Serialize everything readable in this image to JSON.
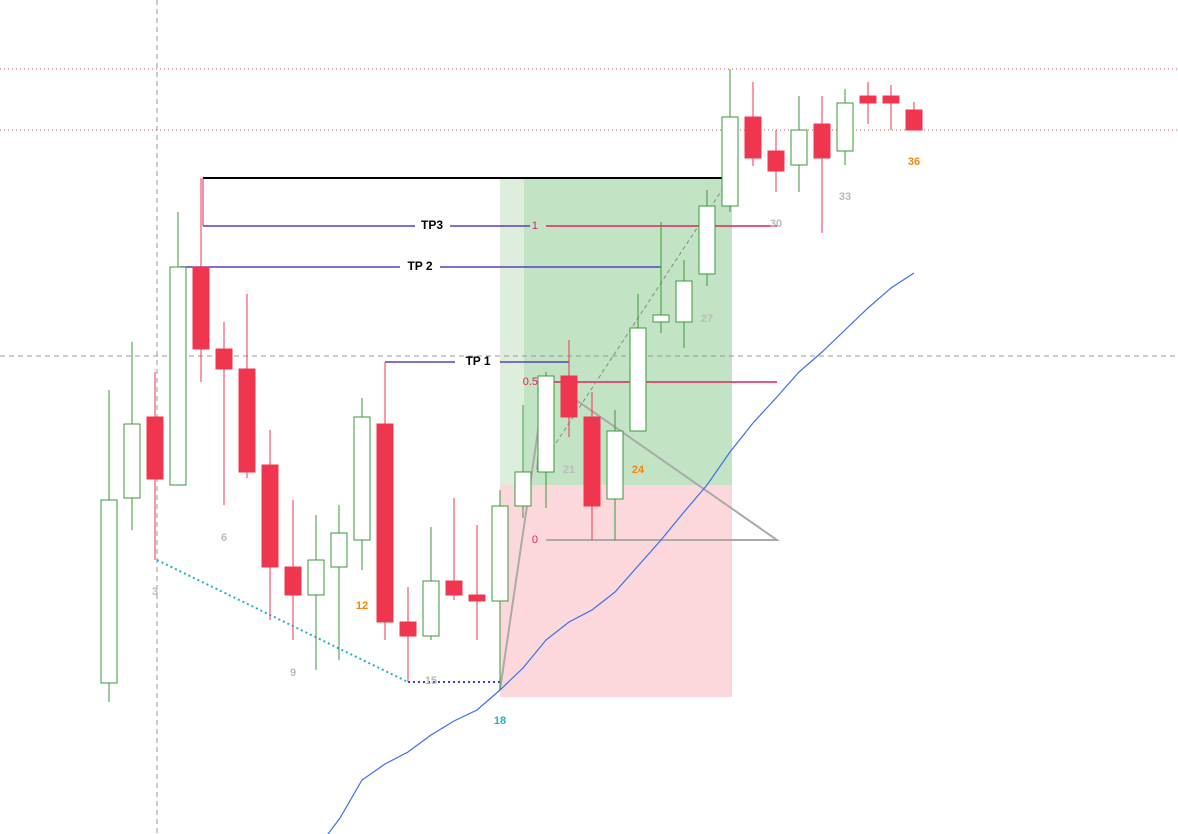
{
  "bar_labels": [
    3,
    6,
    9,
    12,
    15,
    18,
    21,
    24,
    27,
    30,
    33,
    36
  ],
  "fib_levels": [
    1,
    0.5,
    0
  ],
  "take_profits": [
    "TP3",
    "TP 2",
    "TP 1"
  ]
}
